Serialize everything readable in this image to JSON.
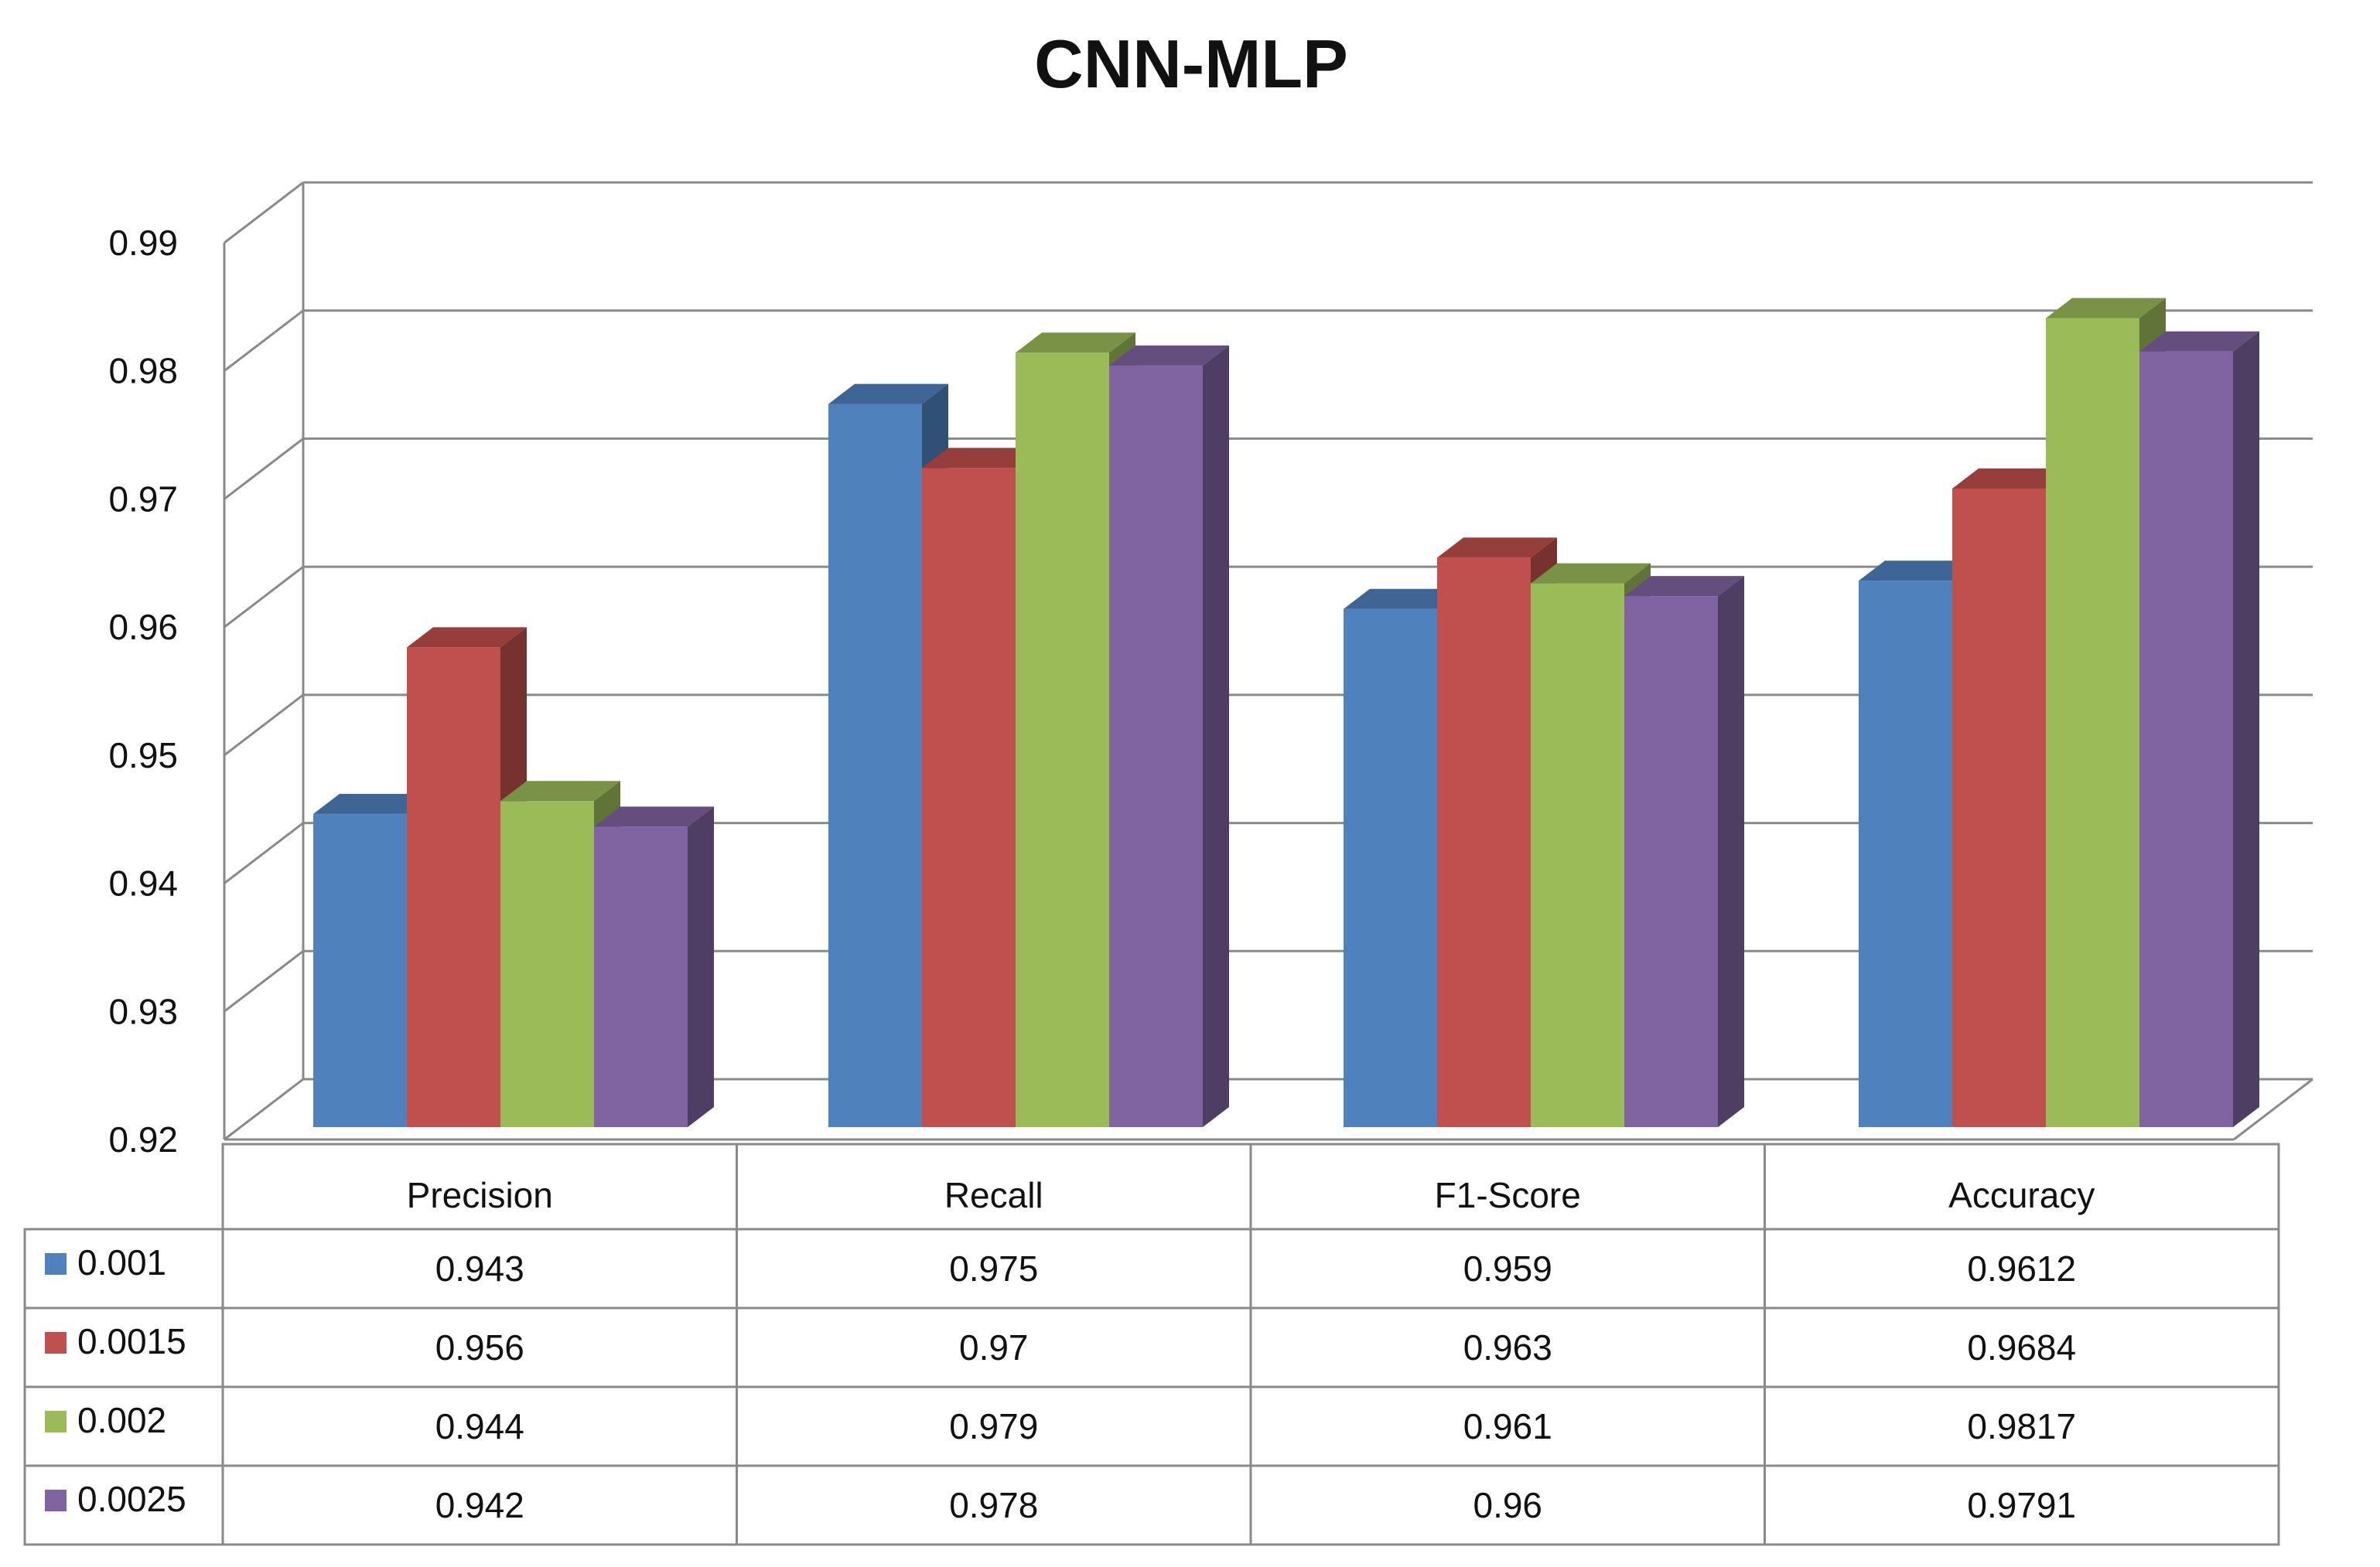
{
  "chart_data": {
    "type": "bar",
    "title": "CNN-MLP",
    "categories": [
      "Precision",
      "Recall",
      "F1-Score",
      "Accuracy"
    ],
    "series": [
      {
        "name": "0.001",
        "color": "#4F81BD",
        "values": [
          0.943,
          0.975,
          0.959,
          0.9612
        ]
      },
      {
        "name": "0.0015",
        "color": "#C0504D",
        "values": [
          0.956,
          0.97,
          0.963,
          0.9684
        ]
      },
      {
        "name": "0.002",
        "color": "#9BBB59",
        "values": [
          0.944,
          0.979,
          0.961,
          0.9817
        ]
      },
      {
        "name": "0.0025",
        "color": "#8064A2",
        "values": [
          0.942,
          0.978,
          0.96,
          0.9791
        ]
      }
    ],
    "value_labels": [
      [
        "0.943",
        "0.975",
        "0.959",
        "0.9612"
      ],
      [
        "0.956",
        "0.97",
        "0.963",
        "0.9684"
      ],
      [
        "0.944",
        "0.979",
        "0.961",
        "0.9817"
      ],
      [
        "0.942",
        "0.978",
        "0.96",
        "0.9791"
      ]
    ],
    "ylim": [
      0.92,
      0.99
    ],
    "yticks": [
      "0.92",
      "0.93",
      "0.94",
      "0.95",
      "0.96",
      "0.97",
      "0.98",
      "0.99"
    ],
    "grid": true,
    "style": "3d-clustered-column",
    "legend": "data-table-below"
  }
}
